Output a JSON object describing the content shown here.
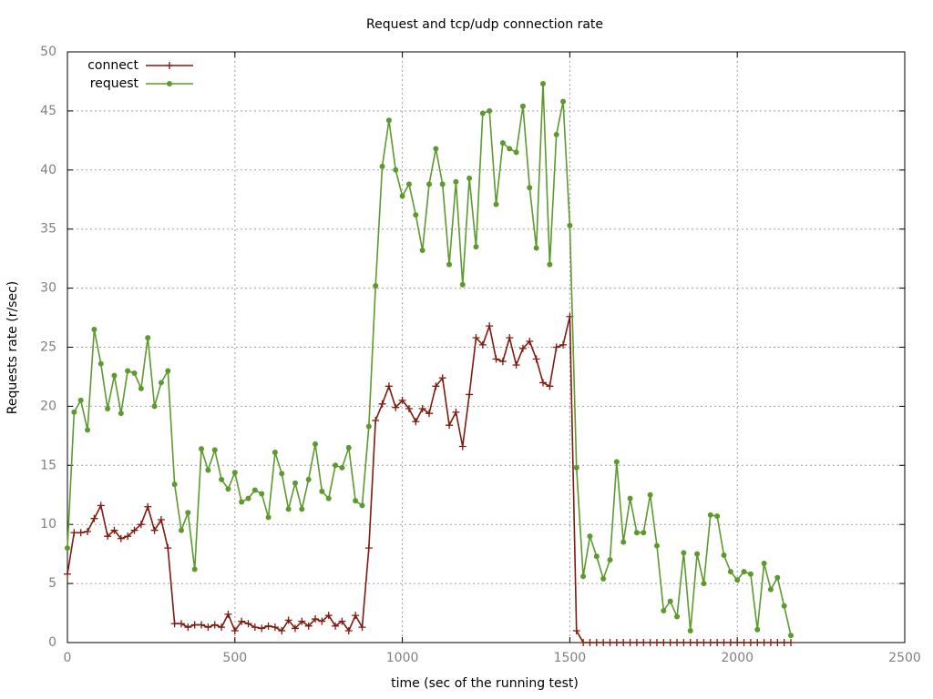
{
  "chart_data": {
    "type": "line",
    "title": "Request and tcp/udp connection rate",
    "x_label": "time (sec of the running test)",
    "y_label": "Requests rate (r/sec)",
    "xlim": [
      0,
      2500
    ],
    "xticks": [
      0,
      500,
      1000,
      1500,
      2000,
      2500
    ],
    "ylim": [
      0,
      50
    ],
    "yticks": [
      0,
      5,
      10,
      15,
      20,
      25,
      30,
      35,
      40,
      45,
      50
    ],
    "grid": true,
    "legend": "top-left",
    "x": [
      0,
      20,
      40,
      60,
      80,
      100,
      120,
      140,
      160,
      180,
      200,
      220,
      240,
      260,
      280,
      300,
      320,
      340,
      360,
      380,
      400,
      420,
      440,
      460,
      480,
      500,
      520,
      540,
      560,
      580,
      600,
      620,
      640,
      660,
      680,
      700,
      720,
      740,
      760,
      780,
      800,
      820,
      840,
      860,
      880,
      900,
      920,
      940,
      960,
      980,
      1000,
      1020,
      1040,
      1060,
      1080,
      1100,
      1120,
      1140,
      1160,
      1180,
      1200,
      1220,
      1240,
      1260,
      1280,
      1300,
      1320,
      1340,
      1360,
      1380,
      1400,
      1420,
      1440,
      1460,
      1480,
      1500,
      1520,
      1540,
      1560,
      1580,
      1600,
      1620,
      1640,
      1660,
      1680,
      1700,
      1720,
      1740,
      1760,
      1780,
      1800,
      1820,
      1840,
      1860,
      1880,
      1900,
      1920,
      1940,
      1960,
      1980,
      2000,
      2020,
      2040,
      2060,
      2080,
      2100,
      2120,
      2140,
      2160
    ],
    "series": [
      {
        "name": "connect",
        "color": "#7f1a10",
        "marker": "plus",
        "values": [
          5.8,
          9.3,
          9.3,
          9.4,
          10.5,
          11.6,
          9,
          9.5,
          8.8,
          9,
          9.5,
          10,
          11.5,
          9.5,
          10.4,
          8,
          1.6,
          1.6,
          1.3,
          1.5,
          1.5,
          1.3,
          1.5,
          1.3,
          2.4,
          1,
          1.8,
          1.6,
          1.3,
          1.2,
          1.4,
          1.3,
          1,
          1.9,
          1.2,
          1.8,
          1.4,
          2,
          1.8,
          2.3,
          1.4,
          1.8,
          1,
          2.3,
          1.3,
          8,
          18.8,
          20.2,
          21.7,
          19.9,
          20.5,
          19.8,
          18.7,
          19.8,
          19.4,
          21.7,
          22.4,
          18.4,
          19.5,
          16.6,
          21,
          25.8,
          25.2,
          26.8,
          24,
          23.8,
          25.8,
          23.5,
          24.9,
          25.5,
          24,
          22,
          21.7,
          25,
          25.2,
          27.6,
          1,
          0,
          0,
          0,
          0,
          0,
          0,
          0,
          0,
          0,
          0,
          0,
          0,
          0,
          0,
          0,
          0,
          0,
          0,
          0,
          0,
          0,
          0,
          0,
          0,
          0,
          0,
          0,
          0,
          0,
          0,
          0,
          0
        ]
      },
      {
        "name": "request",
        "color": "#5c9a2e",
        "marker": "circle",
        "values": [
          8,
          19.5,
          20.5,
          18,
          26.5,
          23.6,
          19.8,
          22.6,
          19.4,
          23,
          22.8,
          21.5,
          25.8,
          20,
          22,
          23,
          13.4,
          9.5,
          11,
          6.2,
          16.4,
          14.6,
          16.3,
          13.8,
          13,
          14.4,
          11.9,
          12.2,
          12.9,
          12.6,
          10.6,
          16.1,
          14.3,
          11.3,
          13.5,
          11.3,
          13.8,
          16.8,
          12.8,
          12.2,
          15,
          14.8,
          16.5,
          12,
          11.6,
          18.3,
          30.2,
          40.3,
          44.2,
          40,
          37.8,
          38.8,
          36.2,
          33.2,
          38.8,
          41.8,
          38.8,
          32,
          39,
          30.3,
          39.3,
          33.5,
          44.8,
          45,
          37.1,
          42.3,
          41.8,
          41.5,
          45.4,
          38.5,
          33.4,
          47.3,
          32,
          43,
          45.8,
          35.3,
          14.8,
          5.6,
          9,
          7.3,
          5.4,
          7,
          15.3,
          8.5,
          12.2,
          9.3,
          9.3,
          12.5,
          8.2,
          2.7,
          3.5,
          2.2,
          7.6,
          1,
          7.5,
          5,
          10.8,
          10.7,
          7.4,
          6,
          5.3,
          6,
          5.8,
          1.1,
          6.7,
          4.5,
          5.5,
          3.1,
          0.6
        ]
      }
    ]
  }
}
